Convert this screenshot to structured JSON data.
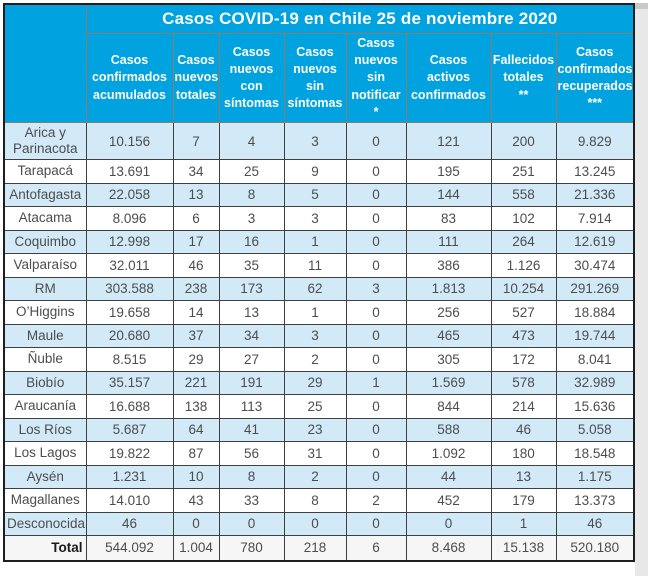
{
  "title": "Casos COVID-19 en Chile 25 de noviembre 2020",
  "table": {
    "corner_label": "",
    "header_display": [
      "Casos confirmados acumulados",
      "Casos nuevos totales",
      "Casos nuevos con síntomas",
      "Casos nuevos sin síntomas",
      "Casos nuevos sin notificar\n*",
      "Casos activos confirmados",
      "Fallecidos totales\n**",
      "Casos confirmados recuperados\n***"
    ]
  },
  "chart_data": {
    "type": "table",
    "title": "Casos COVID-19 en Chile 25 de noviembre 2020",
    "columns": [
      "",
      "Casos confirmados acumulados",
      "Casos nuevos totales",
      "Casos nuevos con síntomas",
      "Casos nuevos sin síntomas",
      "Casos nuevos sin notificar *",
      "Casos activos confirmados",
      "Fallecidos totales **",
      "Casos confirmados recuperados ***"
    ],
    "rows": [
      [
        "Arica y Parinacota",
        "10.156",
        "7",
        "4",
        "3",
        "0",
        "121",
        "200",
        "9.829"
      ],
      [
        "Tarapacá",
        "13.691",
        "34",
        "25",
        "9",
        "0",
        "195",
        "251",
        "13.245"
      ],
      [
        "Antofagasta",
        "22.058",
        "13",
        "8",
        "5",
        "0",
        "144",
        "558",
        "21.336"
      ],
      [
        "Atacama",
        "8.096",
        "6",
        "3",
        "3",
        "0",
        "83",
        "102",
        "7.914"
      ],
      [
        "Coquimbo",
        "12.998",
        "17",
        "16",
        "1",
        "0",
        "111",
        "264",
        "12.619"
      ],
      [
        "Valparaíso",
        "32.011",
        "46",
        "35",
        "11",
        "0",
        "386",
        "1.126",
        "30.474"
      ],
      [
        "RM",
        "303.588",
        "238",
        "173",
        "62",
        "3",
        "1.813",
        "10.254",
        "291.269"
      ],
      [
        "O’Higgins",
        "19.658",
        "14",
        "13",
        "1",
        "0",
        "256",
        "527",
        "18.884"
      ],
      [
        "Maule",
        "20.680",
        "37",
        "34",
        "3",
        "0",
        "465",
        "473",
        "19.744"
      ],
      [
        "Ñuble",
        "8.515",
        "29",
        "27",
        "2",
        "0",
        "305",
        "172",
        "8.041"
      ],
      [
        "Biobío",
        "35.157",
        "221",
        "191",
        "29",
        "1",
        "1.569",
        "578",
        "32.989"
      ],
      [
        "Araucanía",
        "16.688",
        "138",
        "113",
        "25",
        "0",
        "844",
        "214",
        "15.636"
      ],
      [
        "Los Ríos",
        "5.687",
        "64",
        "41",
        "23",
        "0",
        "588",
        "46",
        "5.058"
      ],
      [
        "Los Lagos",
        "19.822",
        "87",
        "56",
        "31",
        "0",
        "1.092",
        "180",
        "18.548"
      ],
      [
        "Aysén",
        "1.231",
        "10",
        "8",
        "2",
        "0",
        "44",
        "13",
        "1.175"
      ],
      [
        "Magallanes",
        "14.010",
        "43",
        "33",
        "8",
        "2",
        "452",
        "179",
        "13.373"
      ],
      [
        "Desconocida",
        "46",
        "0",
        "0",
        "0",
        "0",
        "0",
        "1",
        "46"
      ]
    ],
    "total_row": [
      "Total",
      "544.092",
      "1.004",
      "780",
      "218",
      "6",
      "8.468",
      "15.138",
      "520.180"
    ]
  },
  "colors": {
    "header_bg": "#00a3e0",
    "header_text": "#ffffff",
    "header_border": "#8d7b6d",
    "row_alt_bg": "#d2e9f7",
    "body_text": "#4d4d4d",
    "body_border": "#3f3f3f",
    "outer_border": "#1e1e1e",
    "total_row_bg": "#f6f6f6",
    "gutter_bg": "#e8e8e8"
  }
}
